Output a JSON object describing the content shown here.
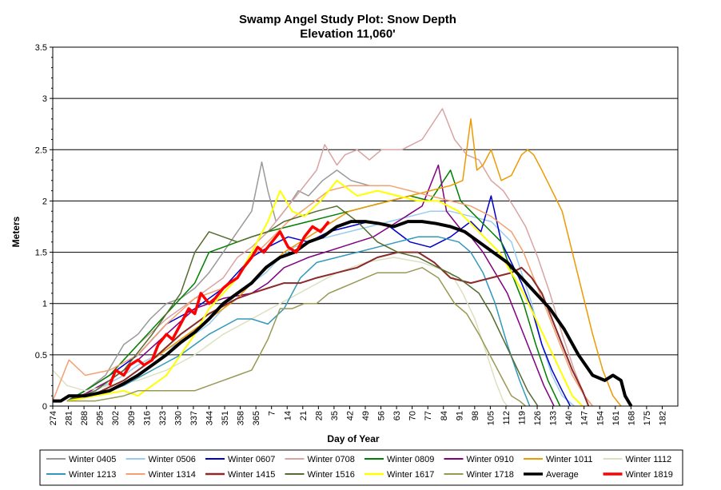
{
  "chart_data": {
    "type": "line",
    "title": "Swamp Angel Study Plot: Snow Depth",
    "subtitle": "Elevation 11,060'",
    "xlabel": "Day of Year",
    "ylabel": "Meters",
    "ylim": [
      0,
      3.5
    ],
    "yticks": [
      "0",
      "0.5",
      "1",
      "1.5",
      "2",
      "2.5",
      "3",
      "3.5"
    ],
    "xticks": [
      "274",
      "281",
      "288",
      "295",
      "302",
      "309",
      "316",
      "323",
      "330",
      "337",
      "344",
      "351",
      "358",
      "365",
      "7",
      "14",
      "21",
      "28",
      "35",
      "42",
      "49",
      "56",
      "63",
      "70",
      "77",
      "84",
      "91",
      "98",
      "105",
      "112",
      "119",
      "126",
      "133",
      "140",
      "147",
      "154",
      "161",
      "168",
      "175",
      "182"
    ],
    "grid": "horizontal",
    "legend_position": "bottom",
    "series": [
      {
        "name": "Winter 0405",
        "color": "#999999",
        "width": 1.5,
        "x": [
          281,
          290,
          300,
          309,
          316,
          322,
          330,
          337,
          344,
          351,
          358,
          365,
          372,
          377,
          380,
          384,
          390,
          395,
          400,
          407,
          414,
          421,
          430
        ],
        "y": [
          0.05,
          0.15,
          0.3,
          0.6,
          0.7,
          0.85,
          1.0,
          1.05,
          1.15,
          1.3,
          1.5,
          1.7,
          1.9,
          2.38,
          2.1,
          1.8,
          1.95,
          2.1,
          2.05,
          2.2,
          2.3,
          2.2,
          2.15
        ]
      },
      {
        "name": "Winter 0506",
        "color": "#99ccee",
        "width": 1.5,
        "x": [
          281,
          295,
          309,
          316,
          330,
          344,
          351,
          358,
          365,
          372,
          379,
          386,
          393,
          400,
          410,
          420,
          430,
          440,
          450,
          460,
          470,
          480,
          490,
          500,
          505,
          510,
          515,
          520,
          525,
          531
        ],
        "y": [
          0.05,
          0.15,
          0.3,
          0.4,
          0.55,
          0.7,
          0.8,
          0.95,
          1.1,
          1.2,
          1.3,
          1.45,
          1.55,
          1.6,
          1.65,
          1.7,
          1.75,
          1.8,
          1.85,
          1.9,
          1.9,
          1.85,
          1.8,
          1.6,
          1.3,
          1.0,
          0.6,
          0.3,
          0.1,
          0
        ]
      },
      {
        "name": "Winter 0607",
        "color": "#0000cc",
        "width": 1.5,
        "x": [
          281,
          290,
          302,
          316,
          330,
          344,
          351,
          358,
          365,
          372,
          380,
          390,
          400,
          410,
          420,
          430,
          440,
          450,
          460,
          470,
          480,
          485,
          490,
          495,
          500,
          505,
          510,
          515,
          520,
          525,
          529
        ],
        "y": [
          0.05,
          0.15,
          0.3,
          0.5,
          0.8,
          0.95,
          1.05,
          1.15,
          1.3,
          1.45,
          1.55,
          1.65,
          1.6,
          1.7,
          1.75,
          1.8,
          1.75,
          1.6,
          1.55,
          1.65,
          1.8,
          1.7,
          2.05,
          1.6,
          1.4,
          1.2,
          0.95,
          0.6,
          0.35,
          0.15,
          0
        ]
      },
      {
        "name": "Winter 0708",
        "color": "#d9a3a3",
        "width": 1.5,
        "x": [
          281,
          290,
          302,
          316,
          330,
          344,
          358,
          365,
          372,
          380,
          388,
          396,
          404,
          408,
          414,
          418,
          424,
          430,
          436,
          446,
          456,
          466,
          472,
          478,
          484,
          490,
          496,
          501,
          507,
          513,
          519,
          525,
          531,
          536,
          540
        ],
        "y": [
          0.05,
          0.15,
          0.3,
          0.6,
          0.85,
          1.05,
          1.25,
          1.45,
          1.55,
          1.7,
          1.9,
          2.1,
          2.3,
          2.55,
          2.35,
          2.45,
          2.5,
          2.4,
          2.5,
          2.5,
          2.6,
          2.9,
          2.6,
          2.45,
          2.4,
          2.2,
          2.1,
          1.95,
          1.75,
          1.45,
          1.1,
          0.7,
          0.35,
          0.1,
          0
        ]
      },
      {
        "name": "Winter 0809",
        "color": "#008000",
        "width": 1.5,
        "x": [
          281,
          290,
          302,
          316,
          330,
          344,
          351,
          358,
          365,
          372,
          380,
          390,
          400,
          410,
          420,
          430,
          440,
          450,
          460,
          470,
          475,
          480,
          485,
          490,
          495,
          500,
          506,
          512,
          518,
          524
        ],
        "y": [
          0.05,
          0.15,
          0.3,
          0.6,
          0.9,
          1.2,
          1.5,
          1.55,
          1.6,
          1.65,
          1.7,
          1.75,
          1.8,
          1.85,
          1.9,
          1.95,
          2.0,
          2.05,
          2.0,
          2.3,
          2.0,
          1.9,
          1.8,
          1.7,
          1.6,
          1.3,
          1.0,
          0.6,
          0.25,
          0
        ]
      },
      {
        "name": "Winter 0910",
        "color": "#800080",
        "width": 1.5,
        "x": [
          281,
          290,
          302,
          316,
          330,
          344,
          358,
          372,
          380,
          388,
          394,
          400,
          408,
          416,
          424,
          432,
          440,
          448,
          456,
          464,
          468,
          472,
          476,
          480,
          486,
          492,
          498,
          504,
          510,
          516,
          521
        ],
        "y": [
          0.05,
          0.12,
          0.25,
          0.45,
          0.7,
          0.95,
          1.05,
          1.1,
          1.2,
          1.35,
          1.4,
          1.45,
          1.5,
          1.55,
          1.6,
          1.65,
          1.75,
          1.85,
          1.95,
          2.35,
          1.9,
          1.8,
          1.7,
          1.65,
          1.5,
          1.3,
          1.1,
          0.8,
          0.5,
          0.2,
          0
        ]
      },
      {
        "name": "Winter 1011",
        "color": "#ee9900",
        "width": 1.5,
        "x": [
          281,
          295,
          309,
          323,
          337,
          351,
          365,
          372,
          380,
          388,
          396,
          404,
          412,
          420,
          430,
          440,
          450,
          460,
          470,
          476,
          480,
          483,
          486,
          490,
          495,
          500,
          505,
          508,
          511,
          515,
          520,
          525,
          530,
          535,
          540,
          545,
          550,
          554
        ],
        "y": [
          0.05,
          0.12,
          0.25,
          0.45,
          0.65,
          0.85,
          1.05,
          1.2,
          1.35,
          1.5,
          1.6,
          1.7,
          1.8,
          1.9,
          1.95,
          2.0,
          2.05,
          2.1,
          2.15,
          2.2,
          2.8,
          2.3,
          2.35,
          2.5,
          2.2,
          2.25,
          2.45,
          2.5,
          2.45,
          2.3,
          2.1,
          1.9,
          1.5,
          1.1,
          0.7,
          0.35,
          0.1,
          0
        ]
      },
      {
        "name": "Winter 1112",
        "color": "#dde0c0",
        "width": 1.5,
        "x": [
          274,
          281,
          290,
          302,
          316,
          330,
          344,
          358,
          372,
          386,
          400,
          414,
          428,
          442,
          456,
          470,
          476,
          482,
          488,
          492,
          496,
          498
        ],
        "y": [
          0.35,
          0.2,
          0.15,
          0.2,
          0.25,
          0.35,
          0.5,
          0.7,
          0.85,
          1.0,
          1.15,
          1.3,
          1.4,
          1.45,
          1.4,
          1.3,
          1.1,
          0.85,
          0.5,
          0.25,
          0.05,
          0
        ]
      },
      {
        "name": "Winter 1213",
        "color": "#3399bb",
        "width": 1.5,
        "x": [
          281,
          295,
          309,
          323,
          337,
          351,
          365,
          372,
          380,
          388,
          396,
          404,
          414,
          424,
          434,
          444,
          454,
          464,
          474,
          480,
          486,
          492,
          498,
          504,
          509
        ],
        "y": [
          0.05,
          0.1,
          0.2,
          0.35,
          0.5,
          0.7,
          0.85,
          0.85,
          0.8,
          0.95,
          1.25,
          1.4,
          1.45,
          1.5,
          1.55,
          1.6,
          1.65,
          1.65,
          1.6,
          1.5,
          1.3,
          1.0,
          0.6,
          0.25,
          0
        ]
      },
      {
        "name": "Winter 1314",
        "color": "#f4a070",
        "width": 1.5,
        "x": [
          274,
          282,
          290,
          302,
          316,
          330,
          344,
          358,
          365,
          372,
          380,
          390,
          400,
          410,
          420,
          430,
          440,
          450,
          460,
          470,
          480,
          490,
          500,
          506,
          512,
          518,
          524,
          530,
          536,
          540
        ],
        "y": [
          0.05,
          0.45,
          0.3,
          0.35,
          0.5,
          0.8,
          1.05,
          1.15,
          1.25,
          1.45,
          1.6,
          1.8,
          1.95,
          2.1,
          2.15,
          2.15,
          2.15,
          2.1,
          2.05,
          2.0,
          1.95,
          1.85,
          1.7,
          1.5,
          1.2,
          0.9,
          0.6,
          0.3,
          0.1,
          0
        ]
      },
      {
        "name": "Winter 1415",
        "color": "#8b2a2a",
        "width": 2,
        "x": [
          281,
          295,
          309,
          323,
          337,
          351,
          365,
          372,
          380,
          388,
          396,
          404,
          414,
          424,
          434,
          444,
          454,
          462,
          470,
          480,
          490,
          500,
          505,
          510,
          515,
          520,
          525,
          530,
          535,
          538
        ],
        "y": [
          0.05,
          0.12,
          0.25,
          0.45,
          0.7,
          0.9,
          1.05,
          1.1,
          1.15,
          1.2,
          1.2,
          1.25,
          1.3,
          1.35,
          1.45,
          1.5,
          1.5,
          1.4,
          1.25,
          1.2,
          1.25,
          1.3,
          1.35,
          1.25,
          1.1,
          0.85,
          0.6,
          0.35,
          0.15,
          0
        ]
      },
      {
        "name": "Winter 1516",
        "color": "#556b2f",
        "width": 1.5,
        "x": [
          281,
          295,
          309,
          323,
          337,
          344,
          351,
          358,
          365,
          372,
          380,
          388,
          396,
          404,
          414,
          424,
          434,
          444,
          454,
          464,
          474,
          484,
          490,
          496,
          502,
          508,
          513
        ],
        "y": [
          0.05,
          0.15,
          0.35,
          0.7,
          1.1,
          1.5,
          1.7,
          1.65,
          1.6,
          1.65,
          1.7,
          1.8,
          1.85,
          1.9,
          1.95,
          1.8,
          1.6,
          1.5,
          1.45,
          1.35,
          1.25,
          1.1,
          0.9,
          0.65,
          0.4,
          0.15,
          0
        ]
      },
      {
        "name": "Winter 1617",
        "color": "#ffff00",
        "width": 2,
        "x": [
          281,
          295,
          309,
          316,
          323,
          330,
          337,
          344,
          351,
          358,
          365,
          372,
          380,
          386,
          392,
          398,
          406,
          414,
          424,
          434,
          444,
          454,
          464,
          474,
          484,
          494,
          500,
          506,
          512,
          518,
          524,
          530,
          535
        ],
        "y": [
          0.05,
          0.1,
          0.15,
          0.1,
          0.2,
          0.3,
          0.5,
          0.7,
          0.95,
          1.1,
          1.25,
          1.5,
          1.8,
          2.1,
          1.9,
          1.85,
          2.0,
          2.2,
          2.05,
          2.1,
          2.05,
          2.0,
          2.0,
          1.9,
          1.7,
          1.5,
          1.3,
          1.1,
          0.85,
          0.6,
          0.35,
          0.1,
          0
        ]
      },
      {
        "name": "Winter 1718",
        "color": "#999955",
        "width": 1.5,
        "x": [
          281,
          295,
          309,
          316,
          323,
          330,
          337,
          344,
          351,
          358,
          365,
          372,
          376,
          380,
          386,
          392,
          398,
          404,
          410,
          416,
          422,
          428,
          434,
          440,
          448,
          456,
          464,
          472,
          478,
          484,
          488,
          492,
          496,
          500,
          504,
          507
        ],
        "y": [
          0.05,
          0.05,
          0.1,
          0.15,
          0.15,
          0.15,
          0.15,
          0.15,
          0.2,
          0.25,
          0.3,
          0.35,
          0.5,
          0.65,
          0.95,
          0.95,
          1.0,
          1.0,
          1.1,
          1.15,
          1.2,
          1.25,
          1.3,
          1.3,
          1.3,
          1.35,
          1.25,
          1.0,
          0.9,
          0.7,
          0.55,
          0.4,
          0.25,
          0.1,
          0.05,
          0
        ]
      },
      {
        "name": "Average",
        "color": "#000000",
        "width": 4,
        "x": [
          274,
          278,
          282,
          286,
          290,
          295,
          302,
          309,
          316,
          323,
          330,
          337,
          344,
          351,
          358,
          365,
          372,
          379,
          386,
          393,
          400,
          407,
          414,
          421,
          428,
          435,
          442,
          449,
          456,
          463,
          470,
          477,
          484,
          491,
          498,
          505,
          512,
          519,
          526,
          533,
          540,
          546,
          550,
          554,
          556,
          559
        ],
        "y": [
          0.05,
          0.05,
          0.1,
          0.1,
          0.1,
          0.12,
          0.15,
          0.22,
          0.3,
          0.4,
          0.5,
          0.62,
          0.72,
          0.85,
          1.0,
          1.1,
          1.2,
          1.35,
          1.45,
          1.5,
          1.6,
          1.65,
          1.75,
          1.8,
          1.8,
          1.78,
          1.75,
          1.8,
          1.8,
          1.78,
          1.75,
          1.7,
          1.6,
          1.5,
          1.4,
          1.25,
          1.1,
          0.95,
          0.75,
          0.5,
          0.3,
          0.25,
          0.3,
          0.25,
          0.1,
          0
        ]
      },
      {
        "name": "Winter 1819",
        "color": "#ff0000",
        "width": 3.5,
        "x": [
          302,
          305,
          309,
          312,
          316,
          319,
          323,
          326,
          330,
          333,
          337,
          341,
          344,
          347,
          351,
          354,
          358,
          361,
          365,
          368,
          372,
          375,
          378,
          382,
          386,
          390,
          394,
          398,
          402,
          406,
          410
        ],
        "y": [
          0.2,
          0.35,
          0.3,
          0.4,
          0.45,
          0.4,
          0.45,
          0.6,
          0.7,
          0.65,
          0.8,
          0.95,
          0.9,
          1.1,
          1.0,
          1.05,
          1.15,
          1.2,
          1.25,
          1.35,
          1.45,
          1.55,
          1.5,
          1.6,
          1.7,
          1.55,
          1.5,
          1.65,
          1.75,
          1.7,
          1.8
        ]
      }
    ]
  }
}
